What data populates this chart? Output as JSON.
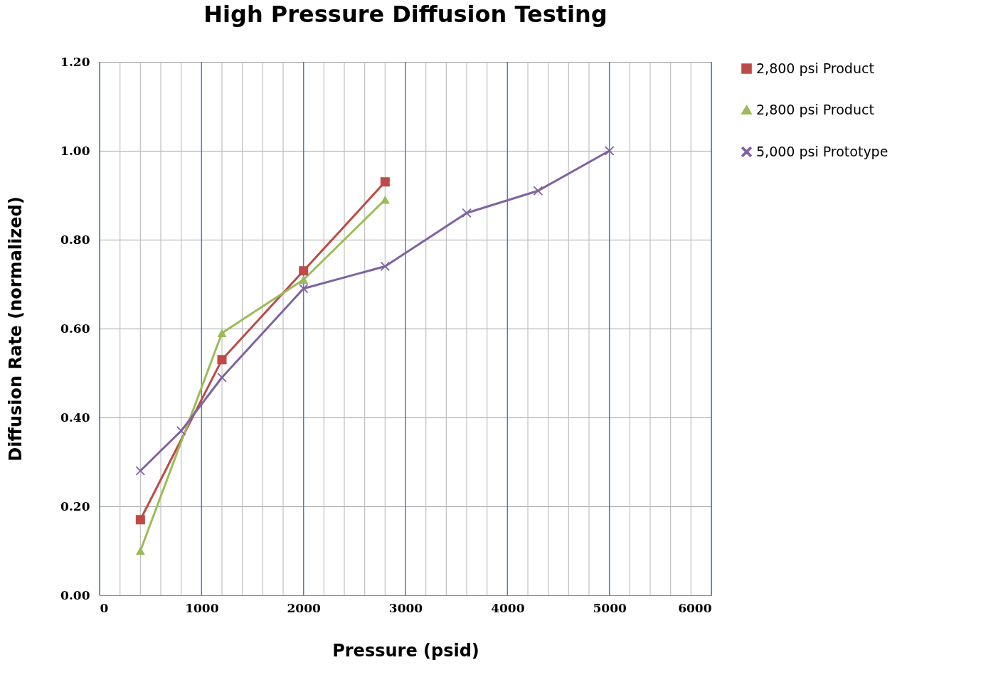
{
  "chart_data": {
    "type": "line",
    "title": "High Pressure Diffusion Testing",
    "xlabel": "Pressure (psid)",
    "ylabel": "Diffusion Rate (normalized)",
    "series": [
      {
        "name": "2,800 psi Product",
        "color": "#be4b48",
        "marker": "square",
        "x": [
          400,
          1200,
          2000,
          2800
        ],
        "values": [
          0.17,
          0.53,
          0.73,
          0.93
        ]
      },
      {
        "name": "2,800 psi Product",
        "color": "#9bbb59",
        "marker": "triangle",
        "x": [
          400,
          1200,
          2000,
          2800
        ],
        "values": [
          0.1,
          0.59,
          0.71,
          0.89
        ]
      },
      {
        "name": "5,000 psi Prototype",
        "color": "#7f63a1",
        "marker": "cross",
        "x": [
          400,
          800,
          1200,
          2000,
          2800,
          3600,
          4300,
          5000
        ],
        "values": [
          0.28,
          0.37,
          0.49,
          0.69,
          0.74,
          0.86,
          0.91,
          1.0
        ]
      }
    ],
    "xlim": [
      0,
      6000
    ],
    "xticks": [
      0,
      {
        "value": 200,
        "label": null
      },
      {
        "value": 400,
        "label": null
      },
      {
        "value": 600,
        "label": null
      },
      {
        "value": 800,
        "label": null
      },
      1000,
      {
        "value": 1200,
        "label": null
      },
      {
        "value": 1400,
        "label": null
      },
      {
        "value": 1600,
        "label": null
      },
      {
        "value": 1800,
        "label": null
      },
      2000,
      {
        "value": 2200,
        "label": null
      },
      {
        "value": 2400,
        "label": null
      },
      {
        "value": 2600,
        "label": null
      },
      {
        "value": 2800,
        "label": null
      },
      3000,
      {
        "value": 3200,
        "label": null
      },
      {
        "value": 3400,
        "label": null
      },
      {
        "value": 3600,
        "label": null
      },
      {
        "value": 3800,
        "label": null
      },
      4000,
      {
        "value": 4200,
        "label": null
      },
      {
        "value": 4400,
        "label": null
      },
      {
        "value": 4600,
        "label": null
      },
      {
        "value": 4800,
        "label": null
      },
      5000,
      {
        "value": 5200,
        "label": null
      },
      {
        "value": 5400,
        "label": null
      },
      {
        "value": 5600,
        "label": null
      },
      {
        "value": 5800,
        "label": null
      },
      6000
    ],
    "ylim": [
      0,
      1.2
    ],
    "yticks": [
      {
        "value": 0,
        "label": "0.00"
      },
      {
        "value": 0.2,
        "label": "0.20"
      },
      {
        "value": 0.4,
        "label": "0.40"
      },
      {
        "value": 0.6,
        "label": "0.60"
      },
      {
        "value": 0.8,
        "label": "0.80"
      },
      {
        "value": 1.0,
        "label": "1.00"
      },
      {
        "value": 1.2,
        "label": "1.20"
      }
    ],
    "grid": true,
    "legend": "right",
    "line_style": "solid"
  }
}
